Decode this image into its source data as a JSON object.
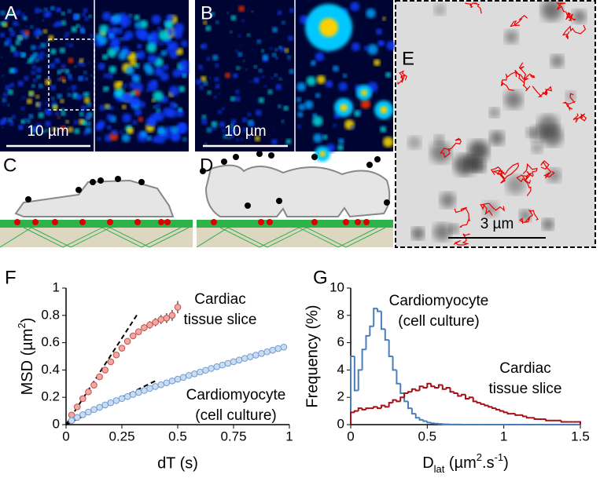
{
  "panel_labels": [
    "A",
    "B",
    "C",
    "D",
    "E",
    "F",
    "G"
  ],
  "scale_bars": [
    "10 µm",
    "10 µm",
    "3 µm"
  ],
  "chart_data": [
    {
      "type": "scatter",
      "x_label": "dT (s)",
      "y_label": [
        "MSD (µm",
        "2",
        ")"
      ],
      "xlim": [
        0,
        1
      ],
      "xticks": [
        0,
        0.25,
        0.5,
        0.75,
        1
      ],
      "ylim": [
        0,
        1
      ],
      "yticks": [
        0,
        0.2,
        0.4,
        0.6,
        0.8,
        1
      ],
      "series": [
        {
          "color": "#f4a6a0",
          "edge_color": "#c0504d",
          "x": [
            0.025,
            0.05,
            0.075,
            0.1,
            0.125,
            0.15,
            0.175,
            0.2,
            0.225,
            0.25,
            0.275,
            0.3,
            0.325,
            0.35,
            0.375,
            0.4,
            0.425,
            0.45,
            0.475,
            0.5
          ],
          "values": [
            0.07,
            0.13,
            0.19,
            0.24,
            0.29,
            0.35,
            0.4,
            0.46,
            0.51,
            0.56,
            0.61,
            0.65,
            0.68,
            0.71,
            0.73,
            0.75,
            0.77,
            0.78,
            0.8,
            0.86
          ],
          "errors": [
            0.005,
            0.006,
            0.008,
            0.01,
            0.011,
            0.012,
            0.014,
            0.015,
            0.017,
            0.018,
            0.02,
            0.022,
            0.024,
            0.026,
            0.028,
            0.03,
            0.033,
            0.036,
            0.04,
            0.045
          ]
        },
        {
          "color": "#c9dcf2",
          "edge_color": "#6f9bd1",
          "x": [
            0.025,
            0.05,
            0.075,
            0.1,
            0.125,
            0.15,
            0.175,
            0.2,
            0.225,
            0.25,
            0.275,
            0.3,
            0.325,
            0.35,
            0.375,
            0.4,
            0.425,
            0.45,
            0.475,
            0.5,
            0.525,
            0.55,
            0.575,
            0.6,
            0.625,
            0.65,
            0.675,
            0.7,
            0.725,
            0.75,
            0.775,
            0.8,
            0.825,
            0.85,
            0.875,
            0.9,
            0.925,
            0.95,
            0.975
          ],
          "values": [
            0.03,
            0.053,
            0.073,
            0.092,
            0.11,
            0.127,
            0.144,
            0.16,
            0.176,
            0.191,
            0.206,
            0.221,
            0.236,
            0.25,
            0.265,
            0.279,
            0.292,
            0.306,
            0.32,
            0.333,
            0.346,
            0.36,
            0.372,
            0.385,
            0.398,
            0.411,
            0.424,
            0.436,
            0.449,
            0.461,
            0.473,
            0.485,
            0.497,
            0.509,
            0.521,
            0.533,
            0.545,
            0.557,
            0.568
          ]
        }
      ],
      "fit_lines": [
        {
          "x": [
            0,
            0.32
          ],
          "values": [
            0,
            0.81
          ]
        },
        {
          "x": [
            0,
            0.4
          ],
          "values": [
            0,
            0.32
          ]
        }
      ],
      "annotations": [
        [
          "Cardiac",
          "tissue slice"
        ],
        [
          "Cardiomyocyte",
          "(cell culture)"
        ]
      ]
    },
    {
      "type": "histogram",
      "x_label": [
        "D",
        "lat",
        " (µm",
        "2",
        ".s",
        "-1",
        ")"
      ],
      "y_label": "Frequency (%)",
      "xlim": [
        0,
        1.5
      ],
      "xticks": [
        0,
        0.5,
        1,
        1.5
      ],
      "ylim": [
        0,
        10
      ],
      "yticks": [
        0,
        2,
        4,
        6,
        8,
        10
      ],
      "bins": [
        0,
        0.025,
        0.05,
        0.075,
        0.1,
        0.125,
        0.15,
        0.175,
        0.2,
        0.225,
        0.25,
        0.275,
        0.3,
        0.325,
        0.35,
        0.375,
        0.4,
        0.425,
        0.45,
        0.475,
        0.5,
        0.525,
        0.55,
        0.575,
        0.6,
        0.625,
        0.65,
        0.675,
        0.7,
        0.725,
        0.75,
        0.775,
        0.8,
        0.825,
        0.85,
        0.875,
        0.9,
        0.925,
        0.95,
        0.975,
        1,
        1.025,
        1.05,
        1.075,
        1.1,
        1.125,
        1.15,
        1.175,
        1.2,
        1.225,
        1.25,
        1.275,
        1.3,
        1.325,
        1.35,
        1.375,
        1.4,
        1.425,
        1.45,
        1.475,
        1.5
      ],
      "series": [
        {
          "color": "#4a7ebb",
          "values": [
            5.0,
            2.5,
            4.0,
            5.5,
            6.5,
            7.2,
            8.5,
            8.3,
            7.0,
            6.2,
            5.0,
            4.0,
            3.0,
            2.3,
            1.7,
            1.2,
            0.8,
            0.5,
            0.35,
            0.25,
            0.15,
            0.1,
            0.07,
            0.05,
            0.03,
            0.02,
            0.01,
            0.01,
            0.01,
            0,
            0,
            0,
            0,
            0,
            0,
            0,
            0,
            0,
            0,
            0,
            0,
            0,
            0,
            0,
            0,
            0,
            0,
            0,
            0,
            0,
            0,
            0,
            0,
            0,
            0,
            0,
            0,
            0,
            0,
            0
          ]
        },
        {
          "color": "#a50f15",
          "values": [
            0.9,
            1.0,
            1.2,
            1.1,
            1.2,
            1.2,
            1.3,
            1.2,
            1.4,
            1.3,
            1.6,
            1.8,
            1.7,
            2.0,
            2.3,
            2.4,
            2.6,
            2.5,
            2.8,
            2.7,
            3.0,
            2.8,
            2.7,
            2.9,
            2.6,
            2.7,
            2.4,
            2.3,
            2.1,
            2.2,
            1.9,
            2.0,
            1.7,
            1.6,
            1.5,
            1.4,
            1.3,
            1.2,
            1.1,
            1.0,
            0.9,
            0.8,
            0.8,
            0.7,
            0.7,
            0.6,
            0.5,
            0.5,
            0.4,
            0.4,
            0.4,
            0.3,
            0.3,
            0.3,
            0.3,
            0.2,
            0.2,
            0.2,
            0.2,
            0.2
          ]
        }
      ],
      "annotations": [
        [
          "Cardiomyocyte",
          "(cell culture)"
        ],
        [
          "Cardiac",
          "tissue slice"
        ]
      ]
    }
  ]
}
